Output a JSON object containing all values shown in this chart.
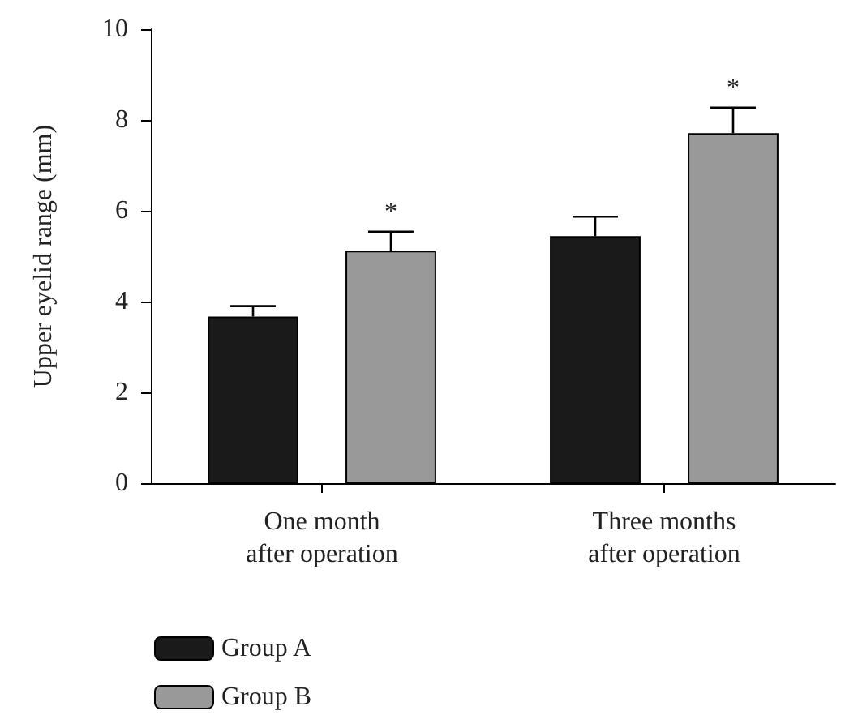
{
  "chart_data": {
    "type": "bar",
    "ylabel": "Upper eyelid range (mm)",
    "categories": [
      "One month\nafter operation",
      "Three months\nafter operation"
    ],
    "series": [
      {
        "name": "Group A",
        "color": "#1a1a1a",
        "values": [
          3.67,
          5.44
        ],
        "errors": [
          [
            3.67,
            3.9
          ],
          [
            5.44,
            5.87
          ]
        ]
      },
      {
        "name": "Group B",
        "color": "#999999",
        "values": [
          5.12,
          7.71
        ],
        "errors": [
          [
            5.12,
            5.54
          ],
          [
            7.71,
            8.27
          ]
        ],
        "value_labels": [
          "*",
          "*"
        ]
      }
    ],
    "ylim": [
      0,
      10
    ],
    "yticks": [
      0,
      2,
      4,
      6,
      8,
      10
    ],
    "grid": false,
    "legend": "bottom left"
  }
}
